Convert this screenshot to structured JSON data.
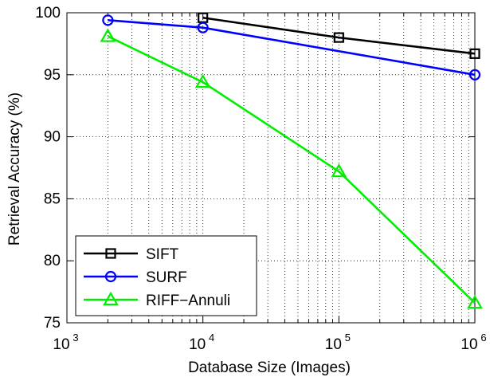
{
  "chart_data": {
    "type": "line",
    "xlabel": "Database Size (Images)",
    "ylabel": "Retrieval Accuracy (%)",
    "xscale": "log",
    "xlim": [
      1000,
      1000000
    ],
    "ylim": [
      75,
      100
    ],
    "x_ticks": [
      {
        "value": 1000,
        "base": "10",
        "exp": "3"
      },
      {
        "value": 10000,
        "base": "10",
        "exp": "4"
      },
      {
        "value": 100000,
        "base": "10",
        "exp": "5"
      },
      {
        "value": 1000000,
        "base": "10",
        "exp": "6"
      }
    ],
    "y_ticks": [
      75,
      80,
      85,
      90,
      95,
      100
    ],
    "grid": true,
    "legend_position": "lower-left",
    "series": [
      {
        "name": "SIFT",
        "color": "#000000",
        "marker": "square",
        "x": [
          10000,
          100000,
          1000000
        ],
        "y": [
          99.6,
          98.0,
          96.7
        ]
      },
      {
        "name": "SURF",
        "color": "#0000ff",
        "marker": "circle",
        "x": [
          2000,
          10000,
          1000000
        ],
        "y": [
          99.4,
          98.8,
          95.0
        ]
      },
      {
        "name": "RIFF−Annuli",
        "color": "#00ee00",
        "marker": "triangle",
        "x": [
          2000,
          10000,
          100000,
          1000000
        ],
        "y": [
          98.1,
          94.4,
          87.2,
          76.6
        ]
      }
    ]
  }
}
